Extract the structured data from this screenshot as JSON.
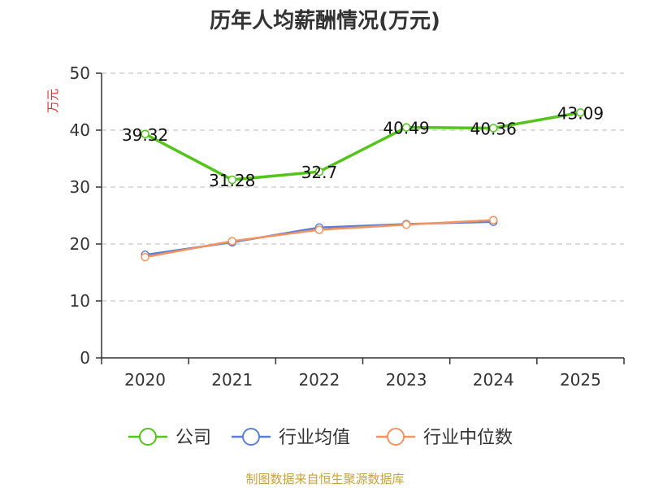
{
  "chart_data": {
    "type": "line",
    "title": "历年人均薪酬情况(万元)",
    "ylabel": "万元",
    "categories": [
      "2020",
      "2021",
      "2022",
      "2023",
      "2024",
      "2025"
    ],
    "ylim": [
      0,
      50
    ],
    "yticks": [
      0,
      10,
      20,
      30,
      40,
      50
    ],
    "grid": true,
    "legend_position": "bottom",
    "series": [
      {
        "name": "公司",
        "color": "#52c41a",
        "values": [
          39.32,
          31.28,
          32.7,
          40.49,
          40.36,
          43.09
        ],
        "data_labels": [
          "39.32",
          "31.28",
          "32.7",
          "40.49",
          "40.36",
          "43.09"
        ]
      },
      {
        "name": "行业均值",
        "color": "#5b7fd6",
        "values": [
          18.1,
          20.3,
          22.9,
          23.5,
          23.9,
          null
        ]
      },
      {
        "name": "行业中位数",
        "color": "#f5925e",
        "values": [
          17.7,
          20.5,
          22.5,
          23.4,
          24.2,
          null
        ]
      }
    ]
  },
  "source_text": "制图数据来自恒生聚源数据库",
  "colors": {
    "axis": "#333333",
    "grid": "#bbbbbb",
    "ylabel": "#e03030",
    "source": "#c8a23c"
  }
}
